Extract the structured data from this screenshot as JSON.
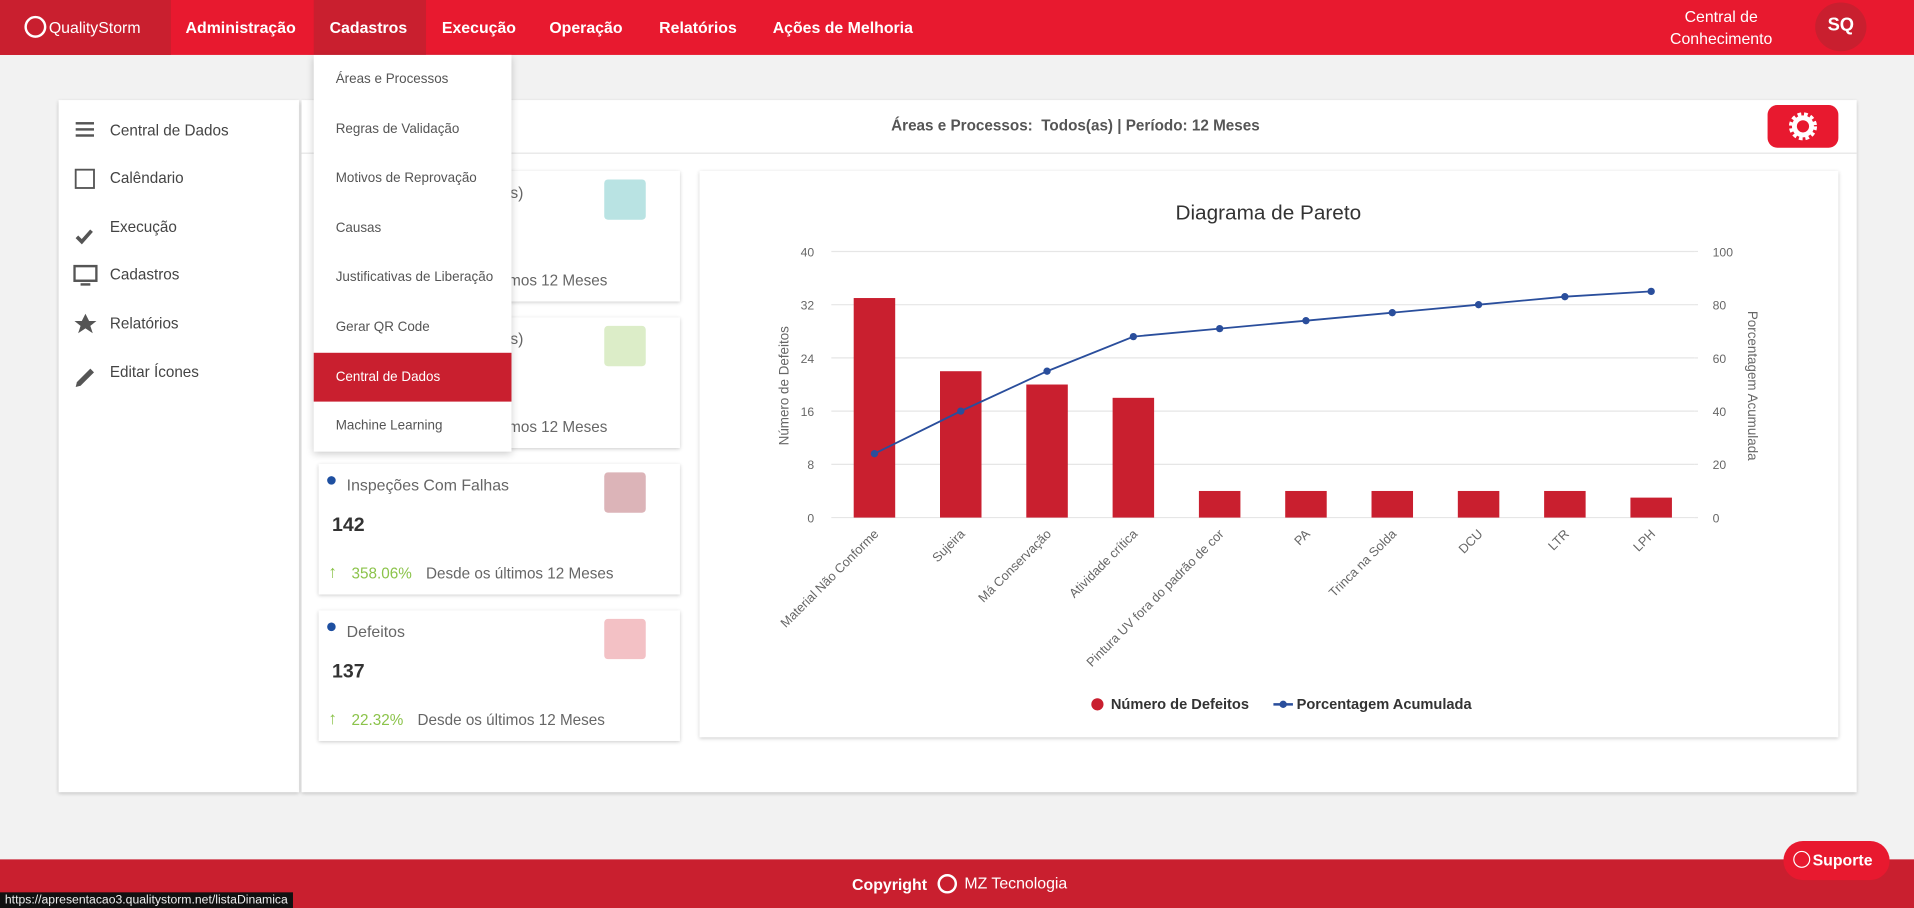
{
  "nav": {
    "logo": "QualityStorm",
    "items": [
      "Administração",
      "Cadastros",
      "Execução",
      "Operação",
      "Relatórios",
      "Ações de Melhoria"
    ],
    "help": "Central de Conhecimento",
    "user": "SQ"
  },
  "dropdown": {
    "items": [
      "Áreas e Processos",
      "Regras de Validação",
      "Motivos de Reprovação",
      "Causas",
      "Justificativas de Liberação",
      "Gerar QR Code",
      "Central de Dados",
      "Machine Learning"
    ]
  },
  "sidebar": {
    "items": [
      "Central de Dados",
      "Calêndario",
      "Execução",
      "Cadastros",
      "Relatórios",
      "Editar Ícones"
    ]
  },
  "filter": "Áreas e Processos:  Todos(as) | Período: 12 Meses",
  "cards": [
    {
      "title": "s)",
      "footer": "timos 12 Meses"
    },
    {
      "title": "s)",
      "footer": "timos 12 Meses"
    },
    {
      "title": "Inspeções Com Falhas",
      "value": "142",
      "change": "358.06%",
      "footer": "Desde os últimos 12 Meses"
    },
    {
      "title": "Defeitos",
      "value": "137",
      "change": "22.32%",
      "footer": "Desde os últimos 12 Meses"
    }
  ],
  "chart_data": {
    "type": "pareto",
    "title": "Diagrama de Pareto",
    "ylabel": "Número de Defeitos",
    "y2label": "Porcentagem Acumulada",
    "categories": [
      "Material Não Conforme",
      "Sujeira",
      "Má Conservação",
      "Atividade crítica",
      "Pintura UV fora do padrão de cor",
      "PA",
      "Trinca na Solda",
      "DCU",
      "LTR",
      "LPH"
    ],
    "series": [
      {
        "name": "Número de Defeitos",
        "color": "#c91f2f",
        "type": "bar",
        "values": [
          33,
          22,
          20,
          18,
          4,
          4,
          4,
          4,
          4,
          3
        ]
      },
      {
        "name": "Porcentagem Acumulada",
        "color": "#2a4e9c",
        "type": "line",
        "axis": "y2",
        "values": [
          24,
          40,
          55,
          68,
          71,
          74,
          77,
          80,
          83,
          85
        ]
      }
    ],
    "ylim": [
      0,
      40
    ],
    "yticks": [
      0,
      8,
      16,
      24,
      32,
      40
    ],
    "y2lim": [
      0,
      100
    ],
    "y2ticks": [
      0,
      20,
      40,
      60,
      80,
      100
    ],
    "grid": true,
    "legend": "bottom"
  },
  "footer": {
    "copyright": "Copyright",
    "brand": "MZ Tecnologia",
    "support": "Suporte"
  },
  "status": "https://apresentacao3.qualitystorm.net/listaDinamica"
}
